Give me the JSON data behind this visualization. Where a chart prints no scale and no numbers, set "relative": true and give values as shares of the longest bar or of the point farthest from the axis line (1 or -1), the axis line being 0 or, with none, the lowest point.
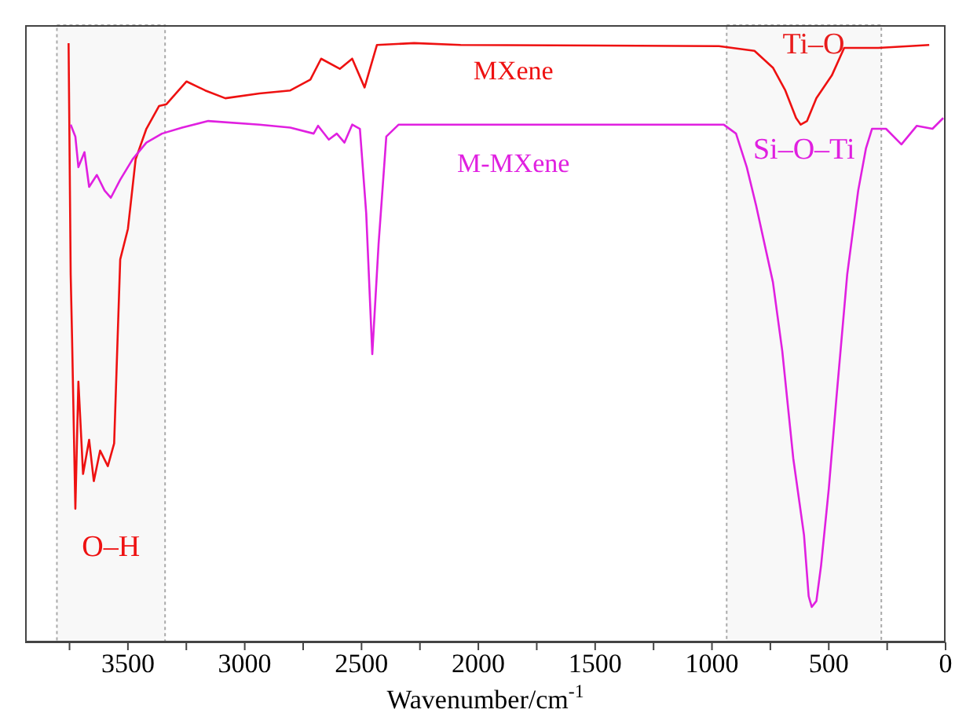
{
  "chart_data": {
    "type": "line",
    "relative": true,
    "xlabel": "Wavenumber/cm$^{-1}$",
    "xlim": [
      3940,
      0
    ],
    "xticks": [
      {
        "value": 3750,
        "label": null
      },
      3500,
      {
        "value": 3250,
        "label": null
      },
      3000,
      {
        "value": 2750,
        "label": null
      },
      2500,
      {
        "value": 2250,
        "label": null
      },
      2000,
      {
        "value": 1750,
        "label": null
      },
      1500,
      {
        "value": 1250,
        "label": null
      },
      1000,
      {
        "value": 750,
        "label": null
      },
      500,
      {
        "value": 250,
        "label": null
      },
      0
    ],
    "series": [
      {
        "name": "MXene",
        "color": "#ee1111",
        "x": [
          3754,
          3745,
          3739,
          3725,
          3712,
          3692,
          3666,
          3646,
          3619,
          3586,
          3559,
          3533,
          3500,
          3467,
          3421,
          3367,
          3335,
          3249,
          3169,
          3083,
          2937,
          2805,
          2719,
          2673,
          2593,
          2540,
          2487,
          2434,
          2275,
          2076,
          970,
          818,
          739,
          686,
          640,
          620,
          593,
          553,
          487,
          434,
          288,
          156,
          70
        ],
        "values": [
          1.0,
          0.614,
          0.506,
          0.223,
          0.435,
          0.281,
          0.338,
          0.269,
          0.32,
          0.294,
          0.332,
          0.639,
          0.69,
          0.806,
          0.857,
          0.895,
          0.898,
          0.936,
          0.921,
          0.908,
          0.916,
          0.921,
          0.939,
          0.974,
          0.957,
          0.974,
          0.926,
          0.997,
          1.0,
          0.997,
          0.995,
          0.987,
          0.959,
          0.921,
          0.875,
          0.864,
          0.87,
          0.908,
          0.946,
          0.992,
          0.992,
          0.995,
          0.997
        ]
      },
      {
        "name": "M-MXene",
        "color": "#e020e0",
        "x": [
          3745,
          3725,
          3712,
          3686,
          3666,
          3633,
          3600,
          3573,
          3533,
          3480,
          3421,
          3354,
          3268,
          3156,
          2937,
          2805,
          2705,
          2686,
          2640,
          2606,
          2573,
          2540,
          2507,
          2480,
          2454,
          2427,
          2394,
          2341,
          2010,
          1679,
          1348,
          950,
          897,
          851,
          811,
          739,
          699,
          652,
          606,
          586,
          573,
          553,
          533,
          500,
          467,
          421,
          374,
          341,
          315,
          255,
          189,
          123,
          56,
          10
        ],
        "values": [
          0.864,
          0.844,
          0.793,
          0.818,
          0.76,
          0.78,
          0.754,
          0.742,
          0.772,
          0.806,
          0.834,
          0.849,
          0.859,
          0.87,
          0.864,
          0.859,
          0.849,
          0.862,
          0.839,
          0.849,
          0.834,
          0.864,
          0.857,
          0.716,
          0.481,
          0.665,
          0.844,
          0.864,
          0.864,
          0.864,
          0.864,
          0.864,
          0.849,
          0.793,
          0.729,
          0.601,
          0.486,
          0.307,
          0.179,
          0.077,
          0.059,
          0.069,
          0.128,
          0.256,
          0.409,
          0.614,
          0.754,
          0.824,
          0.857,
          0.857,
          0.831,
          0.862,
          0.857,
          0.875
        ]
      }
    ],
    "bands": [
      {
        "axis": "x",
        "from": 3804,
        "to": 3341,
        "label": "O–H",
        "color": "#aaaaaa"
      },
      {
        "axis": "x",
        "from": 937,
        "to": 275,
        "label": "Si–O–Ti",
        "color": "#aaaaaa"
      }
    ],
    "annotations": [
      "Ti–O"
    ],
    "legend": false,
    "marker": "none",
    "line_style": "solid"
  }
}
